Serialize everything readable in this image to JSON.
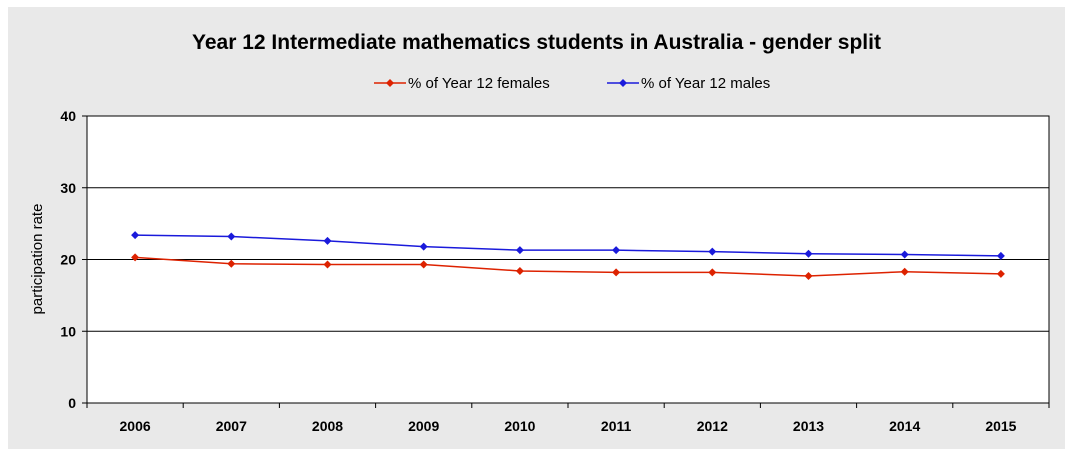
{
  "chart_data": {
    "type": "line",
    "title": "Year 12 Intermediate mathematics students in Australia - gender split",
    "xlabel": "",
    "ylabel": "participation rate",
    "categories": [
      "2006",
      "2007",
      "2008",
      "2009",
      "2010",
      "2011",
      "2012",
      "2013",
      "2014",
      "2015"
    ],
    "series": [
      {
        "name": "% of Year 12 females",
        "color": "#dd2200",
        "values": [
          20.3,
          19.4,
          19.3,
          19.3,
          18.4,
          18.2,
          18.2,
          17.7,
          18.3,
          18.0
        ]
      },
      {
        "name": "% of Year 12 males",
        "color": "#1a1adb",
        "values": [
          23.4,
          23.2,
          22.6,
          21.8,
          21.3,
          21.3,
          21.1,
          20.8,
          20.7,
          20.5
        ]
      }
    ],
    "ylim": [
      0,
      40
    ],
    "yticks": [
      0,
      10,
      20,
      30,
      40
    ],
    "grid": true,
    "legend": "top"
  }
}
